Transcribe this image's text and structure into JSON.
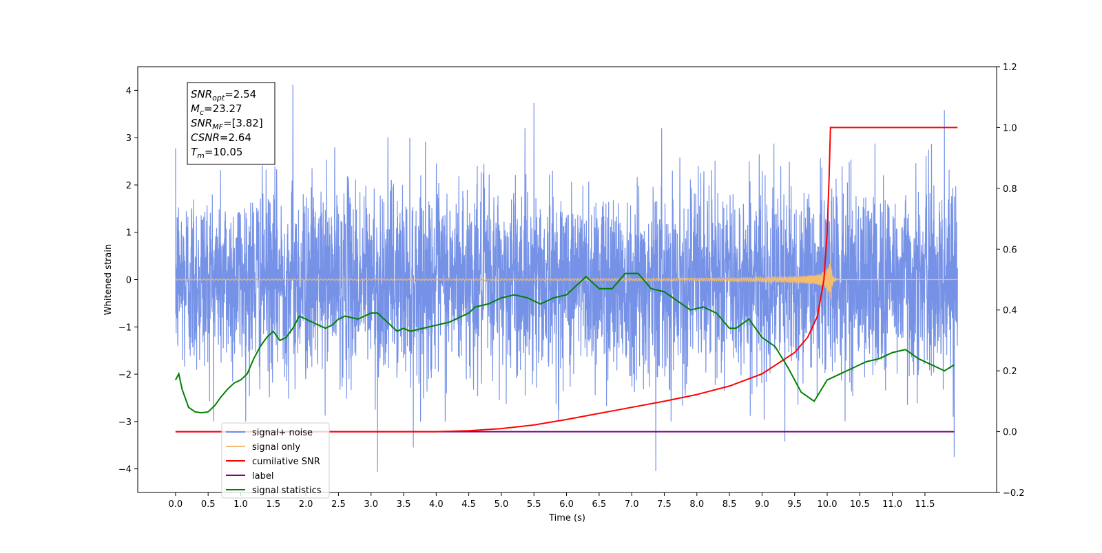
{
  "chart_data": {
    "type": "line",
    "xlabel": "Time (s)",
    "ylabel_left": "Whitened strain",
    "ylabel_right": "",
    "x_ticks": [
      0.0,
      0.5,
      1.0,
      1.5,
      2.0,
      2.5,
      3.0,
      3.5,
      4.0,
      4.5,
      5.0,
      5.5,
      6.0,
      6.5,
      7.0,
      7.5,
      8.0,
      8.5,
      9.0,
      9.5,
      10.0,
      10.5,
      11.0,
      11.5
    ],
    "xlim": [
      -0.58,
      12.6
    ],
    "ylim_left": [
      -4.5,
      4.5
    ],
    "ylim_right": [
      -0.2,
      1.2
    ],
    "yticks_left": [
      -4,
      -3,
      -2,
      -1,
      0,
      1,
      2,
      3,
      4
    ],
    "yticks_right": [
      -0.2,
      0.0,
      0.2,
      0.4,
      0.6,
      0.8,
      1.0,
      1.2
    ],
    "grid": false,
    "legend_placement": "lower-left",
    "stats_box": {
      "lines": [
        {
          "base": "SNR",
          "sub": "opt",
          "value": "=2.54"
        },
        {
          "base": "M",
          "sub": "c",
          "value": "=23.27"
        },
        {
          "base": "SNR",
          "sub": "MF",
          "value": "=[3.82]"
        },
        {
          "base": "CSNR",
          "sub": "",
          "value": "=2.64"
        },
        {
          "base": "T",
          "sub": "m",
          "value": "=10.05"
        }
      ]
    },
    "legend": [
      {
        "label": "signal+ noise",
        "color": "#6f8ce6"
      },
      {
        "label": "signal only",
        "color": "#f5bd6e"
      },
      {
        "label": "cumilative SNR",
        "color": "#ff0000"
      },
      {
        "label": "label",
        "color": "#800080"
      },
      {
        "label": "signal statistics",
        "color": "#008000"
      }
    ],
    "series": [
      {
        "name": "signal+ noise",
        "axis": "left",
        "color": "#6f8ce6",
        "t_start": 0.0,
        "t_end": 12.0,
        "amplitude_std": 1.0,
        "peaks": [
          {
            "x": 1.8,
            "y": 4.12
          },
          {
            "x": 5.5,
            "y": 3.73
          },
          {
            "x": 11.8,
            "y": 3.58
          },
          {
            "x": 3.1,
            "y": -4.07
          },
          {
            "x": 7.37,
            "y": -4.05
          },
          {
            "x": 11.95,
            "y": -3.75
          },
          {
            "x": 3.65,
            "y": -3.55
          },
          {
            "x": 9.35,
            "y": -3.42
          }
        ]
      },
      {
        "name": "signal only",
        "axis": "left",
        "color": "#f5bd6e",
        "t_start": 0.0,
        "t_end": 12.0,
        "merger_time": 10.05,
        "peak_amplitude": 0.5
      },
      {
        "name": "cumilative SNR",
        "axis": "right",
        "color": "#ff0000",
        "x": [
          0.0,
          3.0,
          4.0,
          4.5,
          5.0,
          5.5,
          6.0,
          6.5,
          7.0,
          7.5,
          8.0,
          8.5,
          9.0,
          9.5,
          9.7,
          9.85,
          9.95,
          10.0,
          10.03,
          10.05,
          12.0
        ],
        "values": [
          0.0,
          0.0,
          0.0,
          0.003,
          0.01,
          0.022,
          0.04,
          0.06,
          0.08,
          0.1,
          0.122,
          0.15,
          0.19,
          0.26,
          0.31,
          0.38,
          0.5,
          0.66,
          0.84,
          1.0,
          1.0
        ]
      },
      {
        "name": "label",
        "axis": "right",
        "color": "#800080",
        "x": [
          0.0,
          11.95
        ],
        "values": [
          0.0,
          0.0
        ]
      },
      {
        "name": "signal statistics",
        "axis": "right",
        "color": "#008000",
        "x": [
          0.0,
          0.05,
          0.1,
          0.2,
          0.3,
          0.4,
          0.5,
          0.6,
          0.7,
          0.8,
          0.9,
          1.0,
          1.1,
          1.2,
          1.3,
          1.4,
          1.5,
          1.6,
          1.7,
          1.8,
          1.9,
          2.0,
          2.1,
          2.2,
          2.3,
          2.4,
          2.5,
          2.6,
          2.8,
          3.0,
          3.1,
          3.3,
          3.4,
          3.5,
          3.6,
          3.8,
          4.0,
          4.2,
          4.4,
          4.5,
          4.6,
          4.8,
          5.0,
          5.2,
          5.4,
          5.6,
          5.8,
          6.0,
          6.2,
          6.3,
          6.5,
          6.7,
          6.9,
          7.1,
          7.3,
          7.5,
          7.7,
          7.9,
          8.1,
          8.3,
          8.5,
          8.6,
          8.8,
          9.0,
          9.2,
          9.4,
          9.6,
          9.8,
          10.0,
          10.2,
          10.4,
          10.6,
          10.8,
          11.0,
          11.2,
          11.4,
          11.6,
          11.8,
          11.95
        ],
        "values": [
          0.17,
          0.19,
          0.14,
          0.08,
          0.065,
          0.062,
          0.065,
          0.085,
          0.115,
          0.14,
          0.16,
          0.17,
          0.19,
          0.24,
          0.28,
          0.31,
          0.33,
          0.3,
          0.31,
          0.34,
          0.38,
          0.37,
          0.36,
          0.35,
          0.34,
          0.35,
          0.37,
          0.38,
          0.37,
          0.39,
          0.39,
          0.35,
          0.33,
          0.34,
          0.33,
          0.34,
          0.35,
          0.36,
          0.38,
          0.39,
          0.41,
          0.42,
          0.44,
          0.45,
          0.44,
          0.42,
          0.44,
          0.45,
          0.49,
          0.51,
          0.47,
          0.47,
          0.52,
          0.52,
          0.47,
          0.46,
          0.43,
          0.4,
          0.41,
          0.39,
          0.34,
          0.34,
          0.37,
          0.31,
          0.28,
          0.21,
          0.13,
          0.1,
          0.17,
          0.19,
          0.21,
          0.23,
          0.24,
          0.26,
          0.27,
          0.24,
          0.22,
          0.2,
          0.22
        ]
      }
    ]
  }
}
